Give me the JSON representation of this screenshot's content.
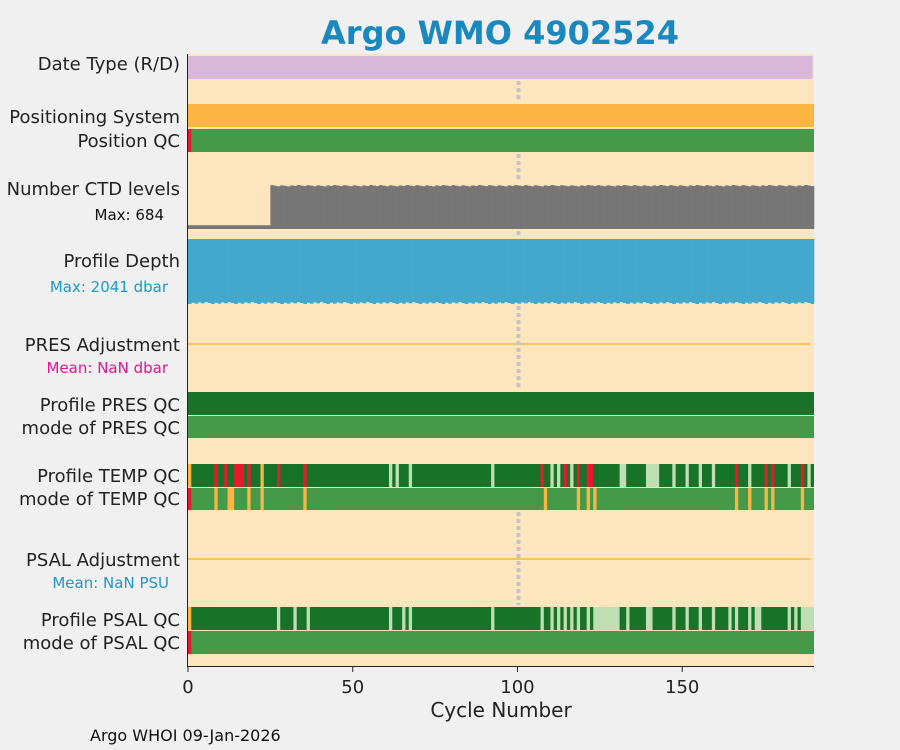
{
  "chart_data": {
    "type": "heatmap",
    "title": "Argo WMO 4902524",
    "xlabel": "Cycle Number",
    "xlim": [
      0,
      190
    ],
    "xticks": [
      0,
      50,
      100,
      150
    ],
    "footer": "Argo WHOI 09-Jan-2026",
    "marker_cycle": 100,
    "rows": {
      "date_type": {
        "label": "Date Type (R/D)",
        "value": "R",
        "color": "#dab8dc"
      },
      "positioning_system": {
        "label": "Positioning System",
        "color": "#fbb540"
      },
      "position_qc": {
        "label": "Position QC",
        "first_cycle_color": "#e8192c",
        "color": "#47994a"
      },
      "ctd_levels": {
        "label": "Number CTD levels",
        "max_label": "Max: 684",
        "max": 684,
        "early_cycles_end": 25,
        "early_level": 55,
        "typical_level": 640
      },
      "profile_depth": {
        "label": "Profile Depth",
        "max_label": "Max: 2041 dbar",
        "max": 2041,
        "color": "#41a9cd"
      },
      "pres_adjustment": {
        "label": "PRES Adjustment",
        "mean_label": "Mean:  NaN dbar",
        "mean_color": "#e41592",
        "line_color": "#fbb540"
      },
      "profile_pres_qc": {
        "label": "Profile PRES QC",
        "value": "A",
        "color": "#177328"
      },
      "mode_pres_qc": {
        "label": "mode of PRES QC",
        "value": "1",
        "color": "#47994a"
      },
      "profile_temp_qc": {
        "label": "Profile TEMP QC",
        "segments": [
          {
            "from": 0,
            "to": 1,
            "grade": "D"
          },
          {
            "from": 8,
            "to": 9,
            "grade": "F"
          },
          {
            "from": 11,
            "to": 12,
            "grade": "F"
          },
          {
            "from": 14,
            "to": 17,
            "grade": "F"
          },
          {
            "from": 18,
            "to": 19,
            "grade": "F"
          },
          {
            "from": 22,
            "to": 23,
            "grade": "E"
          },
          {
            "from": 27,
            "to": 28,
            "grade": "F"
          },
          {
            "from": 35,
            "to": 36,
            "grade": "F"
          },
          {
            "from": 61,
            "to": 62,
            "grade": "B"
          },
          {
            "from": 63,
            "to": 64,
            "grade": "B"
          },
          {
            "from": 67,
            "to": 68,
            "grade": "B"
          },
          {
            "from": 92,
            "to": 93,
            "grade": "B"
          },
          {
            "from": 107,
            "to": 108,
            "grade": "F"
          },
          {
            "from": 110,
            "to": 111,
            "grade": "B"
          },
          {
            "from": 112,
            "to": 113,
            "grade": "B"
          },
          {
            "from": 114,
            "to": 115,
            "grade": "F"
          },
          {
            "from": 116,
            "to": 117,
            "grade": "B"
          },
          {
            "from": 118,
            "to": 119,
            "grade": "F"
          },
          {
            "from": 121,
            "to": 123,
            "grade": "F"
          },
          {
            "from": 131,
            "to": 133,
            "grade": "B"
          },
          {
            "from": 139,
            "to": 143,
            "grade": "B"
          },
          {
            "from": 147,
            "to": 148,
            "grade": "B"
          },
          {
            "from": 151,
            "to": 152,
            "grade": "B"
          },
          {
            "from": 155,
            "to": 156,
            "grade": "B"
          },
          {
            "from": 159,
            "to": 160,
            "grade": "B"
          },
          {
            "from": 166,
            "to": 167,
            "grade": "F"
          },
          {
            "from": 170,
            "to": 171,
            "grade": "B"
          },
          {
            "from": 175,
            "to": 176,
            "grade": "F"
          },
          {
            "from": 177,
            "to": 178,
            "grade": "F"
          },
          {
            "from": 182,
            "to": 183,
            "grade": "B"
          },
          {
            "from": 186,
            "to": 187,
            "grade": "F"
          },
          {
            "from": 188,
            "to": 189,
            "grade": "B"
          }
        ]
      },
      "mode_temp_qc": {
        "label": "mode of TEMP QC",
        "segments": [
          {
            "from": 0,
            "to": 1,
            "grade": "4"
          },
          {
            "from": 8,
            "to": 9,
            "grade": "3"
          },
          {
            "from": 12,
            "to": 14,
            "grade": "3"
          },
          {
            "from": 18,
            "to": 19,
            "grade": "3"
          },
          {
            "from": 22,
            "to": 23,
            "grade": "3"
          },
          {
            "from": 35,
            "to": 36,
            "grade": "3"
          },
          {
            "from": 108,
            "to": 109,
            "grade": "3"
          },
          {
            "from": 118,
            "to": 119,
            "grade": "3"
          },
          {
            "from": 121,
            "to": 122,
            "grade": "3"
          },
          {
            "from": 123,
            "to": 124,
            "grade": "3"
          },
          {
            "from": 166,
            "to": 167,
            "grade": "3"
          },
          {
            "from": 170,
            "to": 171,
            "grade": "3"
          },
          {
            "from": 175,
            "to": 176,
            "grade": "3"
          },
          {
            "from": 177,
            "to": 178,
            "grade": "3"
          },
          {
            "from": 186,
            "to": 187,
            "grade": "3"
          }
        ]
      },
      "psal_adjustment": {
        "label": "PSAL Adjustment",
        "mean_label": "Mean:  NaN PSU",
        "mean_color": "#2296c6",
        "line_color": "#fbb540"
      },
      "profile_psal_qc": {
        "label": "Profile PSAL QC",
        "segments": [
          {
            "from": 0,
            "to": 1,
            "grade": "D"
          },
          {
            "from": 27,
            "to": 28,
            "grade": "B"
          },
          {
            "from": 32,
            "to": 33,
            "grade": "B"
          },
          {
            "from": 36,
            "to": 37,
            "grade": "B"
          },
          {
            "from": 61,
            "to": 62,
            "grade": "B"
          },
          {
            "from": 65,
            "to": 66,
            "grade": "B"
          },
          {
            "from": 67,
            "to": 68,
            "grade": "B"
          },
          {
            "from": 92,
            "to": 93,
            "grade": "B"
          },
          {
            "from": 107,
            "to": 108,
            "grade": "B"
          },
          {
            "from": 110,
            "to": 111,
            "grade": "B"
          },
          {
            "from": 112,
            "to": 113,
            "grade": "B"
          },
          {
            "from": 114,
            "to": 115,
            "grade": "B"
          },
          {
            "from": 116,
            "to": 117,
            "grade": "B"
          },
          {
            "from": 118,
            "to": 119,
            "grade": "B"
          },
          {
            "from": 121,
            "to": 122,
            "grade": "B"
          },
          {
            "from": 123,
            "to": 131,
            "grade": "B"
          },
          {
            "from": 133,
            "to": 134,
            "grade": "B"
          },
          {
            "from": 139,
            "to": 141,
            "grade": "B"
          },
          {
            "from": 147,
            "to": 148,
            "grade": "B"
          },
          {
            "from": 151,
            "to": 152,
            "grade": "B"
          },
          {
            "from": 155,
            "to": 156,
            "grade": "B"
          },
          {
            "from": 159,
            "to": 160,
            "grade": "B"
          },
          {
            "from": 164,
            "to": 165,
            "grade": "B"
          },
          {
            "from": 166,
            "to": 167,
            "grade": "B"
          },
          {
            "from": 170,
            "to": 171,
            "grade": "B"
          },
          {
            "from": 172,
            "to": 174,
            "grade": "B"
          },
          {
            "from": 182,
            "to": 183,
            "grade": "B"
          },
          {
            "from": 184,
            "to": 185,
            "grade": "B"
          },
          {
            "from": 186,
            "to": 190,
            "grade": "B"
          }
        ]
      },
      "mode_psal_qc": {
        "label": "mode of PSAL QC",
        "first_cycle_color": "#e8192c",
        "color": "#47994a"
      }
    },
    "colors": {
      "background": "#fde6bd",
      "qc_A": "#177328",
      "qc_B": "#bddfb1",
      "qc_D": "#fbb540",
      "qc_E": "#fbb540",
      "qc_F": "#e8192c",
      "mode_1": "#47994a",
      "mode_3": "#fbb540",
      "mode_4": "#e8192c",
      "ctd_bar": "#767676",
      "title": "#1a88be"
    }
  }
}
